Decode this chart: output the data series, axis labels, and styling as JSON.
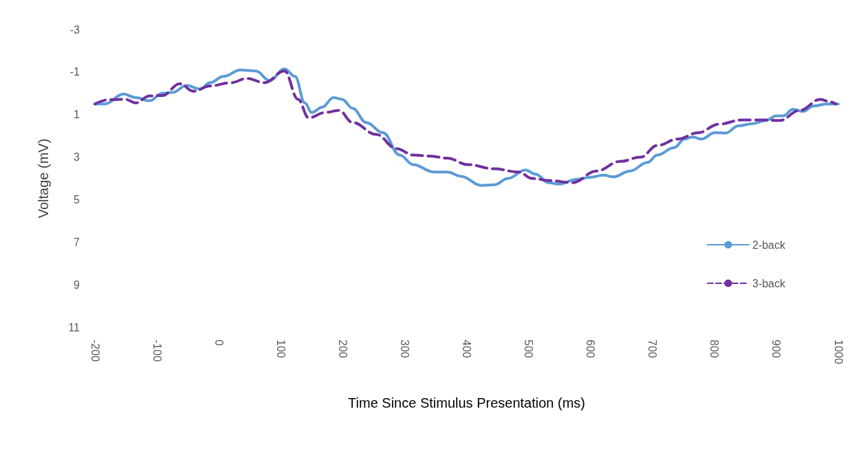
{
  "chart_data": {
    "type": "line",
    "xlabel": "Time Since Stimulus Presentation (ms)",
    "ylabel": "Voltage (mV)",
    "xlim": [
      -200,
      1000
    ],
    "xticks": [
      -200,
      -100,
      0,
      100,
      200,
      300,
      400,
      500,
      600,
      700,
      800,
      900,
      1000
    ],
    "ylim": [
      11,
      -3
    ],
    "yticks": [
      -3,
      -1,
      1,
      3,
      5,
      7,
      9,
      11
    ],
    "grid": false,
    "legend": "right",
    "marker": "none",
    "series": [
      {
        "name": "2-back",
        "color": "#5b9bd5",
        "line_style": "solid",
        "x": [
          -200,
          -184,
          -154,
          -134,
          -112,
          -91,
          -74,
          -52,
          -30,
          -14,
          8,
          35,
          60,
          82,
          106,
          123,
          139,
          150,
          167,
          185,
          199,
          216,
          238,
          265,
          292,
          314,
          347,
          369,
          391,
          424,
          445,
          467,
          495,
          511,
          533,
          549,
          577,
          599,
          621,
          637,
          664,
          692,
          708,
          735,
          752,
          765,
          779,
          801,
          818,
          839,
          861,
          883,
          900,
          911,
          927,
          943,
          960,
          982,
          1000
        ],
        "values": [
          0.5,
          0.5,
          0.03,
          0.2,
          0.35,
          0.0,
          -0.05,
          -0.37,
          -0.2,
          -0.5,
          -0.8,
          -1.1,
          -1.05,
          -0.6,
          -1.15,
          -0.8,
          0.45,
          0.9,
          0.65,
          0.2,
          0.28,
          0.7,
          1.37,
          1.85,
          2.9,
          3.35,
          3.7,
          3.7,
          3.9,
          4.33,
          4.3,
          4.0,
          3.6,
          3.8,
          4.2,
          4.27,
          4.05,
          3.95,
          3.85,
          3.93,
          3.65,
          3.25,
          2.9,
          2.55,
          2.15,
          2.05,
          2.15,
          1.85,
          1.87,
          1.53,
          1.43,
          1.28,
          1.06,
          1.06,
          0.75,
          0.85,
          0.6,
          0.5,
          0.5
        ]
      },
      {
        "name": "3-back",
        "color": "#7030a0",
        "line_style": "dashed",
        "x": [
          -200,
          -178,
          -151,
          -134,
          -112,
          -91,
          -63,
          -41,
          -14,
          19,
          46,
          74,
          106,
          128,
          145,
          172,
          194,
          216,
          254,
          287,
          314,
          341,
          369,
          402,
          445,
          484,
          506,
          533,
          571,
          610,
          648,
          681,
          708,
          741,
          774,
          807,
          845,
          878,
          905,
          938,
          971,
          987,
          996
        ],
        "values": [
          0.5,
          0.3,
          0.28,
          0.45,
          0.12,
          0.1,
          -0.45,
          -0.1,
          -0.35,
          -0.5,
          -0.7,
          -0.5,
          -1.05,
          0.28,
          1.15,
          0.9,
          0.8,
          1.37,
          1.93,
          2.6,
          2.9,
          2.95,
          3.05,
          3.35,
          3.55,
          3.7,
          4.0,
          4.1,
          4.2,
          3.65,
          3.2,
          3.0,
          2.45,
          2.15,
          1.85,
          1.45,
          1.25,
          1.25,
          1.28,
          0.8,
          0.28,
          0.4,
          0.5
        ]
      }
    ]
  }
}
